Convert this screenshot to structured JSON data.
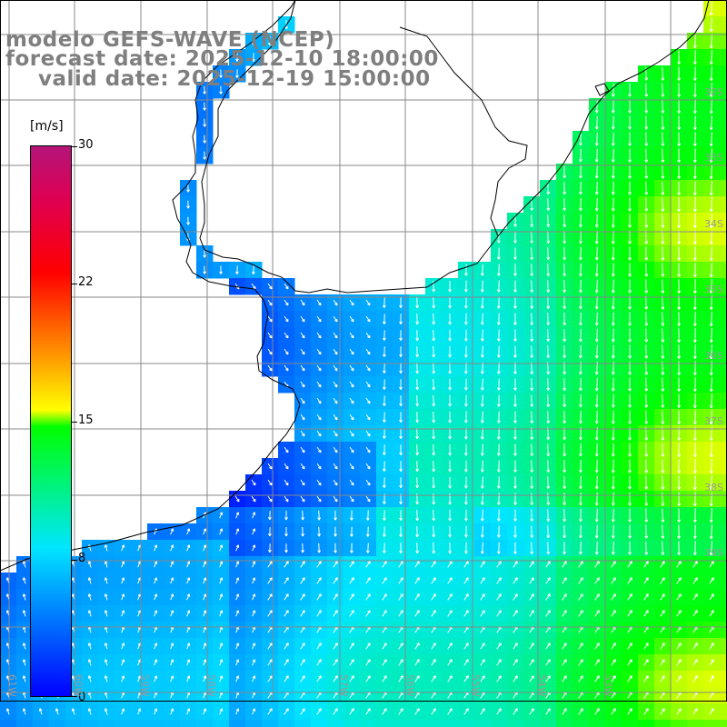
{
  "title": {
    "model": "modelo GEFS-WAVE (NCEP)",
    "forecast": "forecast date: 2025-12-10 18:00:00",
    "valid": "valid date: 2025-12-19 15:00:00"
  },
  "colorbar": {
    "unit": "[m/s]",
    "ticks": [
      "0",
      "8",
      "15",
      "22",
      "30"
    ],
    "range": [
      0,
      30
    ],
    "colors": [
      "#0000ff",
      "#00e6ff",
      "#00ff00",
      "#ffff00",
      "#ff8c00",
      "#ff0000",
      "#b4147a"
    ]
  },
  "lat_labels": [
    "32S",
    "33S",
    "34S",
    "35S",
    "36S",
    "37S",
    "38S",
    "39S"
  ],
  "lon_labels": [
    "61W",
    "60W",
    "59W",
    "58W",
    "57W",
    "56W",
    "55W",
    "54W",
    "53W"
  ],
  "colors": {
    "land": "#ffffff",
    "grid": "#888888",
    "coast": "#000000",
    "arrows": "#ffffff",
    "title_text": "#7f7f7f"
  }
}
